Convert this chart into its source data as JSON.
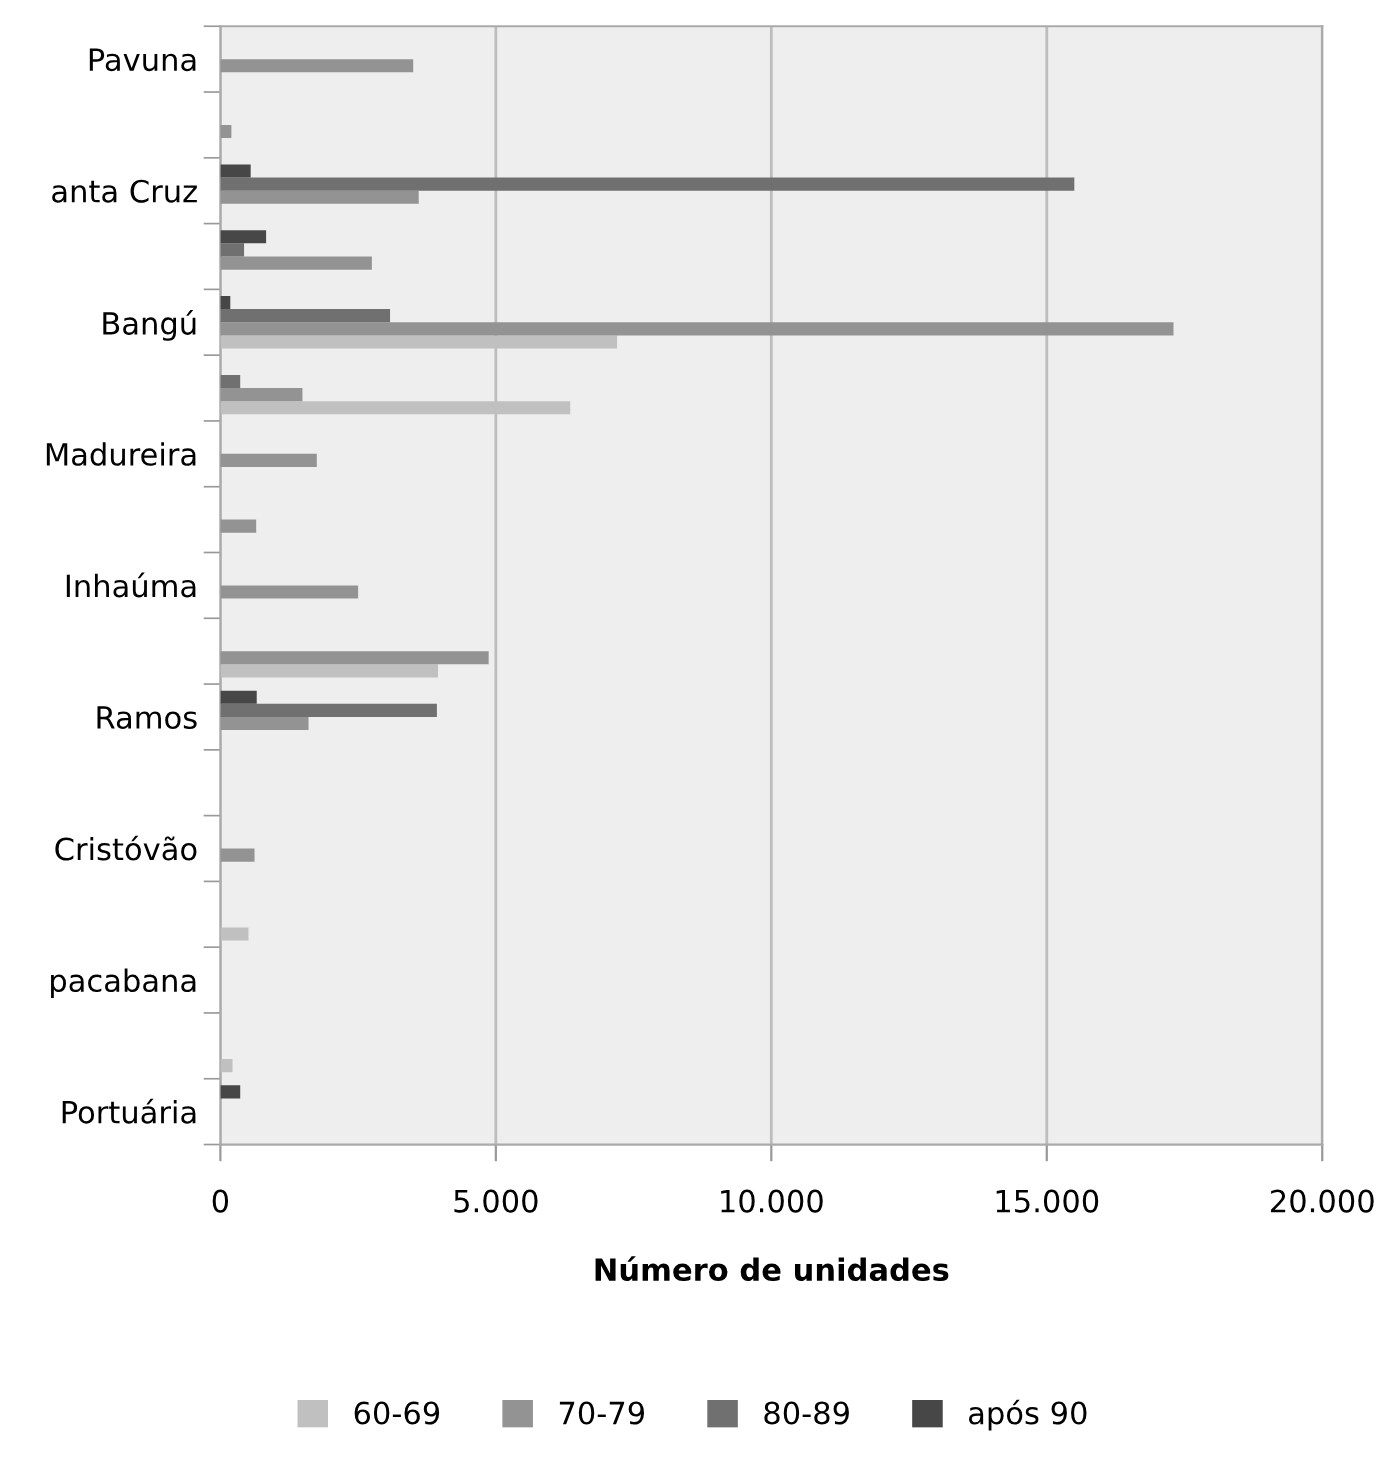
{
  "chart_data": {
    "type": "bar",
    "orientation": "horizontal",
    "xlabel": "Número de unidades",
    "categories": [
      "Pavuna",
      null,
      "anta Cruz",
      null,
      "Bangú",
      null,
      "Madureira",
      null,
      "Inhaúma",
      null,
      "Ramos",
      null,
      "Cristóvão",
      null,
      "pacabana",
      null,
      "Portuária"
    ],
    "series": [
      {
        "name": "60-69",
        "color": "#c0c0c0",
        "values": [
          0,
          0,
          0,
          0,
          7200,
          6350,
          0,
          0,
          0,
          3950,
          0,
          0,
          0,
          510,
          0,
          220,
          0
        ]
      },
      {
        "name": "70-79",
        "color": "#939393",
        "values": [
          3500,
          200,
          3600,
          2750,
          17300,
          1490,
          1750,
          650,
          2500,
          4870,
          1600,
          0,
          620,
          0,
          0,
          0,
          0
        ]
      },
      {
        "name": "80-89",
        "color": "#707070",
        "values": [
          0,
          0,
          15500,
          430,
          3080,
          360,
          0,
          0,
          0,
          0,
          3930,
          0,
          0,
          0,
          0,
          0,
          0
        ]
      },
      {
        "name": "após 90",
        "color": "#474747",
        "values": [
          0,
          0,
          550,
          830,
          180,
          0,
          0,
          0,
          0,
          0,
          660,
          0,
          0,
          0,
          0,
          0,
          360
        ]
      }
    ],
    "xlim": [
      0,
      20000
    ],
    "xticks": [
      0,
      {
        "value": 5000,
        "label": "5.000"
      },
      {
        "value": 10000,
        "label": "10.000"
      },
      {
        "value": 15000,
        "label": "15.000"
      },
      {
        "value": 20000,
        "label": "20.000"
      }
    ],
    "grid": "x",
    "legend": "bottom"
  }
}
